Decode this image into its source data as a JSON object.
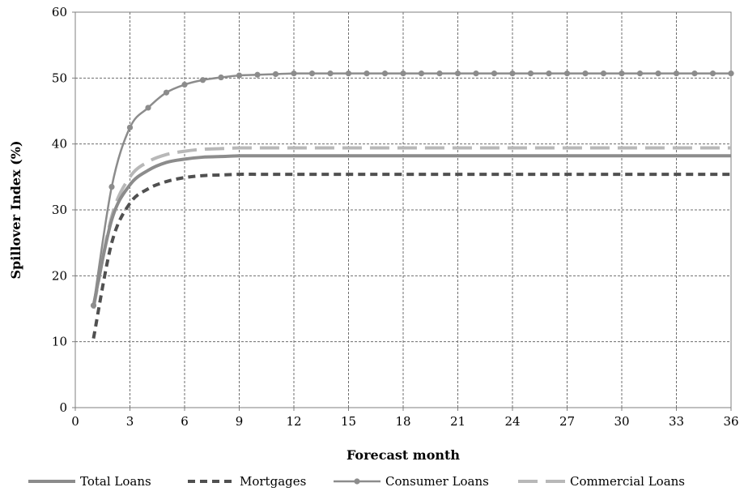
{
  "chart_data": {
    "type": "line",
    "title": "",
    "xlabel": "Forecast month",
    "ylabel": "Spillover Index (%)",
    "xlim": [
      0,
      36
    ],
    "ylim": [
      0,
      60
    ],
    "xticks": [
      0,
      3,
      6,
      9,
      12,
      15,
      18,
      21,
      24,
      27,
      30,
      33,
      36
    ],
    "yticks": [
      0,
      10,
      20,
      30,
      40,
      50,
      60
    ],
    "grid": true,
    "legend_position": "bottom",
    "x": [
      1,
      2,
      3,
      4,
      5,
      6,
      7,
      8,
      9,
      10,
      11,
      12,
      13,
      14,
      15,
      16,
      17,
      18,
      19,
      20,
      21,
      22,
      23,
      24,
      25,
      26,
      27,
      28,
      29,
      30,
      31,
      32,
      33,
      34,
      35,
      36
    ],
    "series": [
      {
        "name": "Total Loans",
        "style": "solid",
        "color": "#8c8c8c",
        "values": [
          15.5,
          28.5,
          33.8,
          36.0,
          37.2,
          37.7,
          38.0,
          38.1,
          38.2,
          38.2,
          38.2,
          38.2,
          38.2,
          38.2,
          38.2,
          38.2,
          38.2,
          38.2,
          38.2,
          38.2,
          38.2,
          38.2,
          38.2,
          38.2,
          38.2,
          38.2,
          38.2,
          38.2,
          38.2,
          38.2,
          38.2,
          38.2,
          38.2,
          38.2,
          38.2,
          38.2
        ]
      },
      {
        "name": "Mortgages",
        "style": "dashed",
        "color": "#505050",
        "values": [
          10.5,
          25.0,
          31.0,
          33.2,
          34.3,
          34.9,
          35.2,
          35.3,
          35.4,
          35.4,
          35.4,
          35.4,
          35.4,
          35.4,
          35.4,
          35.4,
          35.4,
          35.4,
          35.4,
          35.4,
          35.4,
          35.4,
          35.4,
          35.4,
          35.4,
          35.4,
          35.4,
          35.4,
          35.4,
          35.4,
          35.4,
          35.4,
          35.4,
          35.4,
          35.4,
          35.4
        ]
      },
      {
        "name": "Consumer Loans",
        "style": "solid-markers",
        "color": "#8c8c8c",
        "values": [
          15.5,
          33.5,
          42.5,
          45.5,
          47.8,
          49.0,
          49.7,
          50.1,
          50.4,
          50.5,
          50.6,
          50.7,
          50.7,
          50.7,
          50.7,
          50.7,
          50.7,
          50.7,
          50.7,
          50.7,
          50.7,
          50.7,
          50.7,
          50.7,
          50.7,
          50.7,
          50.7,
          50.7,
          50.7,
          50.7,
          50.7,
          50.7,
          50.7,
          50.7,
          50.7,
          50.7
        ]
      },
      {
        "name": "Commercial Loans",
        "style": "long-dash",
        "color": "#b8b8b8",
        "values": [
          15.0,
          29.0,
          35.0,
          37.3,
          38.4,
          38.9,
          39.2,
          39.3,
          39.4,
          39.4,
          39.4,
          39.4,
          39.4,
          39.4,
          39.4,
          39.4,
          39.4,
          39.4,
          39.4,
          39.4,
          39.4,
          39.4,
          39.4,
          39.4,
          39.4,
          39.4,
          39.4,
          39.4,
          39.4,
          39.4,
          39.4,
          39.4,
          39.4,
          39.4,
          39.4,
          39.4
        ]
      }
    ]
  }
}
